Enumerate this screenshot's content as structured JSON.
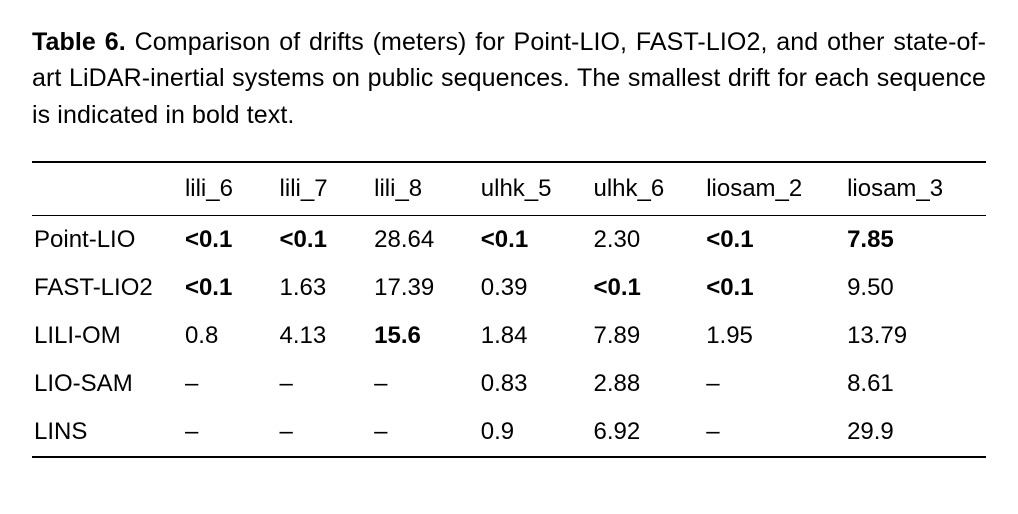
{
  "caption": {
    "label": "Table 6.",
    "text": "Comparison of drifts (meters) for Point-LIO, FAST-LIO2, and other state-of-art LiDAR-inertial systems on public sequences. The smallest drift for each sequence is indicated in bold text."
  },
  "table": {
    "type": "table",
    "columns": [
      "lili_6",
      "lili_7",
      "lili_8",
      "ulhk_5",
      "ulhk_6",
      "liosam_2",
      "liosam_3"
    ],
    "row_labels": [
      "Point-LIO",
      "FAST-LIO2",
      "LILI-OM",
      "LIO-SAM",
      "LINS"
    ],
    "rows": [
      [
        "<0.1",
        "<0.1",
        "28.64",
        "<0.1",
        "2.30",
        "<0.1",
        "7.85"
      ],
      [
        "<0.1",
        "1.63",
        "17.39",
        "0.39",
        "<0.1",
        "<0.1",
        "9.50"
      ],
      [
        "0.8",
        "4.13",
        "15.6",
        "1.84",
        "7.89",
        "1.95",
        "13.79"
      ],
      [
        "–",
        "–",
        "–",
        "0.83",
        "2.88",
        "–",
        "8.61"
      ],
      [
        "–",
        "–",
        "–",
        "0.9",
        "6.92",
        "–",
        "29.9"
      ]
    ],
    "bold_mask": [
      [
        true,
        true,
        false,
        true,
        false,
        true,
        true
      ],
      [
        true,
        false,
        false,
        false,
        true,
        true,
        false
      ],
      [
        false,
        false,
        true,
        false,
        false,
        false,
        false
      ],
      [
        false,
        false,
        false,
        false,
        false,
        false,
        false
      ],
      [
        false,
        false,
        false,
        false,
        false,
        false,
        false
      ]
    ],
    "border_color": "#000000",
    "background_color": "#ffffff",
    "body_fontsize": 24,
    "caption_fontsize": 25
  }
}
